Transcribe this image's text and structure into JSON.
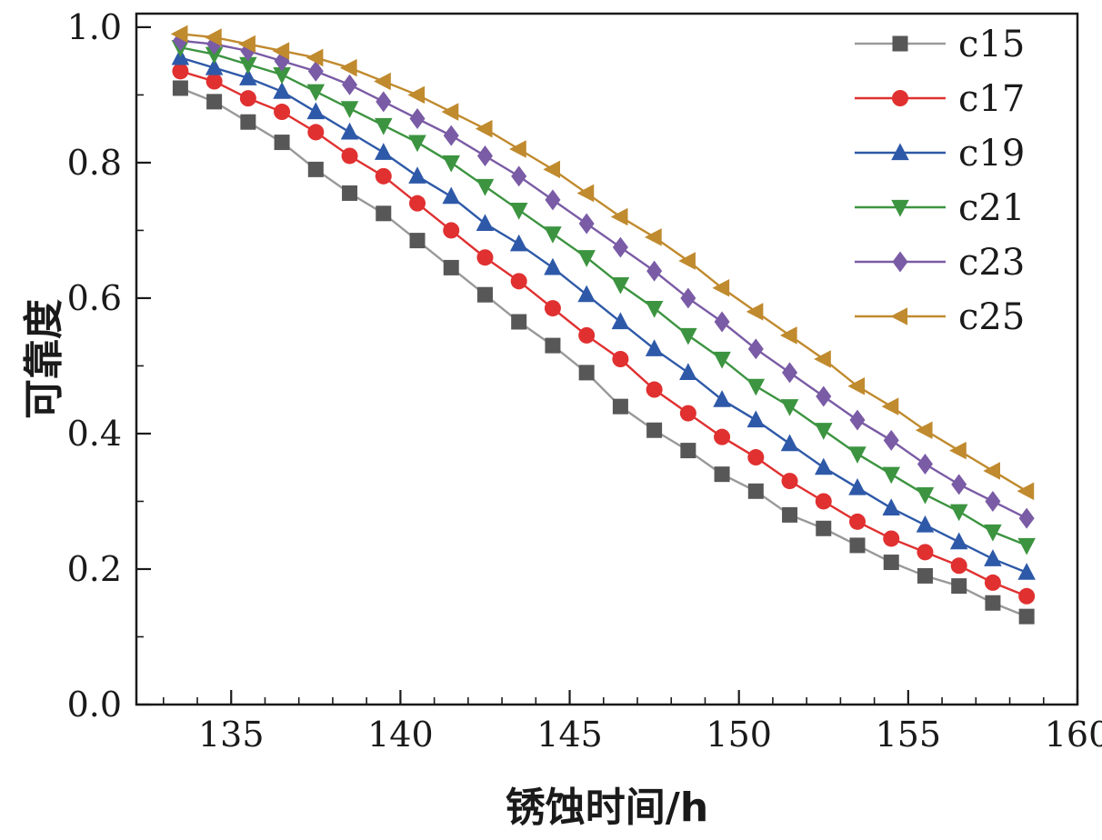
{
  "figure": {
    "xlabel": "锈蚀时间/h",
    "ylabel": "可靠度"
  },
  "chart_data": {
    "type": "line",
    "title": "",
    "xlabel": "锈蚀时间/h",
    "ylabel": "可靠度",
    "xlim": [
      132.2,
      160
    ],
    "ylim": [
      0,
      1.02
    ],
    "xticks": [
      135,
      140,
      145,
      150,
      155,
      160
    ],
    "yticks": [
      0.0,
      0.2,
      0.4,
      0.6,
      0.8,
      1.0
    ],
    "grid": false,
    "legend_position": "top-right",
    "x": [
      133.5,
      134.5,
      135.5,
      136.5,
      137.5,
      138.5,
      139.5,
      140.5,
      141.5,
      142.5,
      143.5,
      144.5,
      145.5,
      146.5,
      147.5,
      148.5,
      149.5,
      150.5,
      151.5,
      152.5,
      153.5,
      154.5,
      155.5,
      156.5,
      157.5,
      158.5
    ],
    "series": [
      {
        "name": "c15",
        "marker": "square",
        "color": "#575757",
        "line_color": "#999999",
        "values": [
          0.91,
          0.89,
          0.86,
          0.83,
          0.79,
          0.755,
          0.725,
          0.685,
          0.645,
          0.605,
          0.565,
          0.53,
          0.49,
          0.44,
          0.405,
          0.375,
          0.34,
          0.315,
          0.28,
          0.26,
          0.235,
          0.21,
          0.19,
          0.175,
          0.15,
          0.13
        ]
      },
      {
        "name": "c17",
        "marker": "circle",
        "color": "#e03030",
        "line_color": "#e03030",
        "values": [
          0.935,
          0.92,
          0.895,
          0.875,
          0.845,
          0.81,
          0.78,
          0.74,
          0.7,
          0.66,
          0.625,
          0.585,
          0.545,
          0.51,
          0.465,
          0.43,
          0.395,
          0.365,
          0.33,
          0.3,
          0.27,
          0.245,
          0.225,
          0.205,
          0.18,
          0.16
        ]
      },
      {
        "name": "c19",
        "marker": "triangle-up",
        "color": "#2e59a8",
        "line_color": "#2e59a8",
        "values": [
          0.955,
          0.94,
          0.925,
          0.905,
          0.875,
          0.845,
          0.815,
          0.78,
          0.75,
          0.71,
          0.68,
          0.645,
          0.605,
          0.565,
          0.525,
          0.49,
          0.45,
          0.42,
          0.385,
          0.35,
          0.32,
          0.29,
          0.265,
          0.24,
          0.215,
          0.195
        ]
      },
      {
        "name": "c21",
        "marker": "triangle-down",
        "color": "#3c9440",
        "line_color": "#3c9440",
        "values": [
          0.97,
          0.96,
          0.945,
          0.93,
          0.905,
          0.88,
          0.855,
          0.83,
          0.8,
          0.765,
          0.73,
          0.695,
          0.66,
          0.62,
          0.585,
          0.545,
          0.51,
          0.47,
          0.44,
          0.405,
          0.37,
          0.34,
          0.31,
          0.285,
          0.255,
          0.235
        ]
      },
      {
        "name": "c23",
        "marker": "diamond",
        "color": "#7a5ba5",
        "line_color": "#7a5ba5",
        "values": [
          0.98,
          0.975,
          0.965,
          0.95,
          0.935,
          0.915,
          0.89,
          0.865,
          0.84,
          0.81,
          0.78,
          0.745,
          0.71,
          0.675,
          0.64,
          0.6,
          0.565,
          0.525,
          0.49,
          0.455,
          0.42,
          0.39,
          0.355,
          0.325,
          0.3,
          0.275
        ]
      },
      {
        "name": "c25",
        "marker": "triangle-left",
        "color": "#c08a2e",
        "line_color": "#c08a2e",
        "values": [
          0.99,
          0.985,
          0.975,
          0.965,
          0.955,
          0.94,
          0.92,
          0.9,
          0.875,
          0.85,
          0.82,
          0.79,
          0.755,
          0.72,
          0.69,
          0.655,
          0.615,
          0.58,
          0.545,
          0.51,
          0.47,
          0.44,
          0.405,
          0.375,
          0.345,
          0.315
        ]
      }
    ]
  }
}
